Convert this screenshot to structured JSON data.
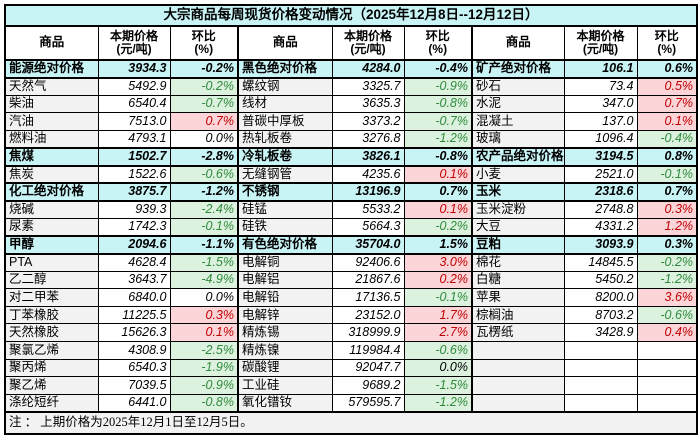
{
  "title": "大宗商品每周现货价格变动情况（2025年12月8日--12月12日）",
  "headers": {
    "commodity": "商品",
    "price_line1": "本期价格",
    "price_line2": "(元/吨)",
    "pct_line1": "环比",
    "pct_line2": "(%)"
  },
  "footnote": "注 ： 上期价格为2025年12月1日至12月5日。",
  "colors": {
    "title_bg": "#C9F4F6",
    "section_bg": "#C9F4F6",
    "name_bg": "#F2F2F2",
    "up_bg": "#FCD5D9",
    "up_text": "#C00000",
    "down_bg": "#DCF2DF",
    "down_text": "#2F8A3C"
  },
  "groups": [
    {
      "rows": [
        {
          "name": "能源绝对价格",
          "price": "3934.3",
          "pct": "-0.2%",
          "trend": "section"
        },
        {
          "name": "天然气",
          "price": "5492.9",
          "pct": "-0.2%",
          "trend": "down"
        },
        {
          "name": "柴油",
          "price": "6540.4",
          "pct": "-0.7%",
          "trend": "down"
        },
        {
          "name": "汽油",
          "price": "7513.0",
          "pct": "0.7%",
          "trend": "up"
        },
        {
          "name": "燃料油",
          "price": "4793.1",
          "pct": "0.0%",
          "trend": "flat"
        },
        {
          "name": "焦煤",
          "price": "1502.7",
          "pct": "-2.8%",
          "trend": "down"
        },
        {
          "name": "焦炭",
          "price": "1522.6",
          "pct": "-0.6%",
          "trend": "down"
        },
        {
          "name": "化工绝对价格",
          "price": "3875.7",
          "pct": "-1.2%",
          "trend": "section"
        },
        {
          "name": "烧碱",
          "price": "939.3",
          "pct": "-2.4%",
          "trend": "down"
        },
        {
          "name": "尿素",
          "price": "1742.3",
          "pct": "-0.1%",
          "trend": "down"
        },
        {
          "name": "甲醇",
          "price": "2094.6",
          "pct": "-1.1%",
          "trend": "down"
        },
        {
          "name": "PTA",
          "price": "4628.4",
          "pct": "-1.5%",
          "trend": "down"
        },
        {
          "name": "乙二醇",
          "price": "3643.7",
          "pct": "-4.9%",
          "trend": "down"
        },
        {
          "name": "对二甲苯",
          "price": "6840.0",
          "pct": "0.0%",
          "trend": "flat"
        },
        {
          "name": "丁苯橡胶",
          "price": "11225.5",
          "pct": "0.3%",
          "trend": "up"
        },
        {
          "name": "天然橡胶",
          "price": "15626.3",
          "pct": "0.1%",
          "trend": "up"
        },
        {
          "name": "聚氯乙烯",
          "price": "4308.9",
          "pct": "-2.5%",
          "trend": "down"
        },
        {
          "name": "聚丙烯",
          "price": "6540.3",
          "pct": "-1.9%",
          "trend": "down"
        },
        {
          "name": "聚乙烯",
          "price": "7039.5",
          "pct": "-0.9%",
          "trend": "down"
        },
        {
          "name": "涤纶短纤",
          "price": "6441.0",
          "pct": "-0.8%",
          "trend": "down"
        }
      ]
    },
    {
      "rows": [
        {
          "name": "黑色绝对价格",
          "price": "4284.0",
          "pct": "-0.4%",
          "trend": "section"
        },
        {
          "name": "螺纹钢",
          "price": "3325.7",
          "pct": "-0.9%",
          "trend": "down"
        },
        {
          "name": "线材",
          "price": "3635.3",
          "pct": "-0.8%",
          "trend": "down"
        },
        {
          "name": "普碳中厚板",
          "price": "3373.2",
          "pct": "-0.7%",
          "trend": "down"
        },
        {
          "name": "热轧板卷",
          "price": "3276.8",
          "pct": "-1.2%",
          "trend": "down"
        },
        {
          "name": "冷轧板卷",
          "price": "3826.1",
          "pct": "-0.8%",
          "trend": "down"
        },
        {
          "name": "无缝钢管",
          "price": "4235.6",
          "pct": "0.1%",
          "trend": "up"
        },
        {
          "name": "不锈钢",
          "price": "13196.9",
          "pct": "0.7%",
          "trend": "up"
        },
        {
          "name": "硅锰",
          "price": "5533.2",
          "pct": "0.1%",
          "trend": "up"
        },
        {
          "name": "硅铁",
          "price": "5664.3",
          "pct": "-0.2%",
          "trend": "down"
        },
        {
          "name": "有色绝对价格",
          "price": "35704.0",
          "pct": "1.5%",
          "trend": "section"
        },
        {
          "name": "电解铜",
          "price": "92406.6",
          "pct": "3.0%",
          "trend": "up"
        },
        {
          "name": "电解铝",
          "price": "21867.6",
          "pct": "0.2%",
          "trend": "up"
        },
        {
          "name": "电解铅",
          "price": "17136.5",
          "pct": "-0.1%",
          "trend": "down"
        },
        {
          "name": "电解锌",
          "price": "23152.0",
          "pct": "1.7%",
          "trend": "up"
        },
        {
          "name": "精炼锡",
          "price": "318999.9",
          "pct": "2.7%",
          "trend": "up"
        },
        {
          "name": "精炼镍",
          "price": "119984.4",
          "pct": "-0.6%",
          "trend": "down"
        },
        {
          "name": "碳酸锂",
          "price": "92047.7",
          "pct": "0.0%",
          "trend": "zero"
        },
        {
          "name": "工业硅",
          "price": "9689.2",
          "pct": "-1.5%",
          "trend": "down"
        },
        {
          "name": "氧化镨钕",
          "price": "579595.7",
          "pct": "-1.2%",
          "trend": "down"
        }
      ]
    },
    {
      "rows": [
        {
          "name": "矿产绝对价格",
          "price": "106.1",
          "pct": "0.6%",
          "trend": "section"
        },
        {
          "name": "砂石",
          "price": "73.4",
          "pct": "0.5%",
          "trend": "up"
        },
        {
          "name": "水泥",
          "price": "347.0",
          "pct": "0.7%",
          "trend": "up"
        },
        {
          "name": "混凝土",
          "price": "137.0",
          "pct": "0.1%",
          "trend": "up"
        },
        {
          "name": "玻璃",
          "price": "1096.4",
          "pct": "-0.4%",
          "trend": "down"
        },
        {
          "name": "农产品绝对价格",
          "price": "3194.5",
          "pct": "0.8%",
          "trend": "section"
        },
        {
          "name": "小麦",
          "price": "2521.0",
          "pct": "-0.1%",
          "trend": "down"
        },
        {
          "name": "玉米",
          "price": "2318.6",
          "pct": "0.7%",
          "trend": "up"
        },
        {
          "name": "玉米淀粉",
          "price": "2748.8",
          "pct": "0.3%",
          "trend": "up"
        },
        {
          "name": "大豆",
          "price": "4331.2",
          "pct": "1.2%",
          "trend": "up"
        },
        {
          "name": "豆粕",
          "price": "3093.9",
          "pct": "0.3%",
          "trend": "up"
        },
        {
          "name": "棉花",
          "price": "14845.5",
          "pct": "-0.2%",
          "trend": "down"
        },
        {
          "name": "白糖",
          "price": "5450.2",
          "pct": "-1.2%",
          "trend": "down"
        },
        {
          "name": "苹果",
          "price": "8200.0",
          "pct": "3.6%",
          "trend": "up"
        },
        {
          "name": "棕榈油",
          "price": "8703.2",
          "pct": "-0.6%",
          "trend": "down"
        },
        {
          "name": "瓦楞纸",
          "price": "3428.9",
          "pct": "0.4%",
          "trend": "up"
        },
        {
          "name": "",
          "price": "",
          "pct": "",
          "trend": "empty"
        },
        {
          "name": "",
          "price": "",
          "pct": "",
          "trend": "empty"
        },
        {
          "name": "",
          "price": "",
          "pct": "",
          "trend": "empty"
        },
        {
          "name": "",
          "price": "",
          "pct": "",
          "trend": "empty"
        }
      ]
    }
  ]
}
